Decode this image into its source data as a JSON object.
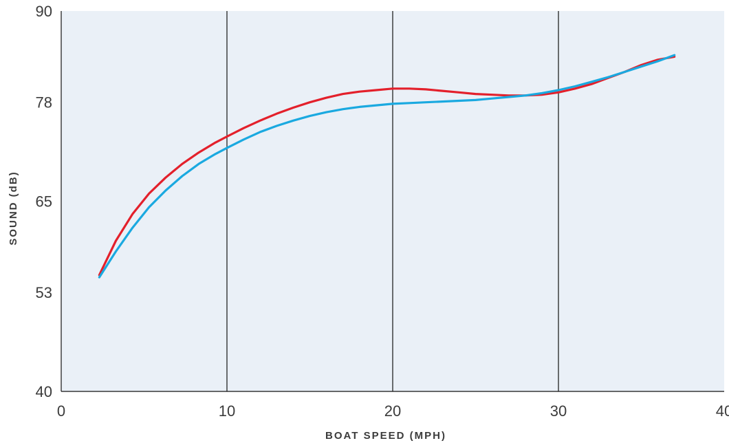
{
  "chart_data": {
    "type": "line",
    "xlabel": "BOAT SPEED (MPH)",
    "ylabel": "SOUND (dB)",
    "xlim": [
      0,
      40
    ],
    "ylim": [
      40,
      90
    ],
    "x_ticks": [
      0,
      10,
      20,
      30,
      40
    ],
    "x_tick_labels": [
      "0",
      "10",
      "20",
      "30",
      "40"
    ],
    "y_ticks": [
      40,
      53,
      65,
      78,
      90
    ],
    "y_tick_labels": [
      "40",
      "53",
      "65",
      "78",
      "90"
    ],
    "grid": "vertical",
    "legend": "none",
    "background_color": "#eaf0f7",
    "series": [
      {
        "color": "#e3202b",
        "x": [
          2.3,
          3.3,
          4.3,
          5.3,
          6.3,
          7.3,
          8.3,
          9.3,
          10,
          11,
          12,
          13,
          14,
          15,
          16,
          17,
          18,
          19,
          20,
          21,
          22,
          23,
          24,
          25,
          26,
          27,
          28,
          29,
          30,
          31,
          32,
          33,
          34,
          35,
          36,
          37
        ],
        "y": [
          55.3,
          59.8,
          63.3,
          66.0,
          68.1,
          69.9,
          71.4,
          72.7,
          73.5,
          74.6,
          75.6,
          76.5,
          77.3,
          78.0,
          78.6,
          79.1,
          79.4,
          79.6,
          79.8,
          79.8,
          79.7,
          79.5,
          79.3,
          79.1,
          79.0,
          78.9,
          78.9,
          79.0,
          79.3,
          79.8,
          80.4,
          81.2,
          82.0,
          82.9,
          83.6,
          84.0
        ]
      },
      {
        "color": "#1aa9e0",
        "x": [
          2.3,
          3.3,
          4.3,
          5.3,
          6.3,
          7.3,
          8.3,
          9.3,
          10,
          11,
          12,
          13,
          14,
          15,
          16,
          17,
          18,
          19,
          20,
          21,
          22,
          23,
          24,
          25,
          26,
          27,
          28,
          29,
          30,
          31,
          32,
          33,
          34,
          35,
          36,
          37
        ],
        "y": [
          55.0,
          58.4,
          61.5,
          64.2,
          66.4,
          68.3,
          69.9,
          71.2,
          72.0,
          73.1,
          74.1,
          74.9,
          75.6,
          76.2,
          76.7,
          77.1,
          77.4,
          77.6,
          77.8,
          77.9,
          78.0,
          78.1,
          78.2,
          78.3,
          78.5,
          78.7,
          78.9,
          79.2,
          79.6,
          80.1,
          80.7,
          81.3,
          82.0,
          82.7,
          83.4,
          84.2
        ]
      }
    ]
  }
}
